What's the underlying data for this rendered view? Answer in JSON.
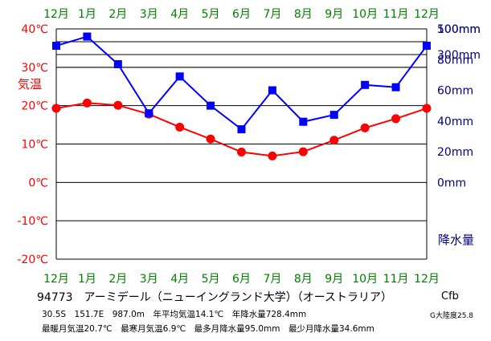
{
  "chart_data": {
    "type": "line",
    "categories": [
      "12月",
      "1月",
      "2月",
      "3月",
      "4月",
      "5月",
      "6月",
      "7月",
      "8月",
      "9月",
      "10月",
      "11月",
      "12月"
    ],
    "temp_axis": {
      "label": "気温",
      "ticks": [
        "40℃",
        "30℃",
        "20℃",
        "10℃",
        "0℃",
        "-10℃",
        "-20℃"
      ],
      "tick_values": [
        40,
        30,
        20,
        10,
        0,
        -10,
        -20
      ],
      "ylim": [
        -20,
        40
      ]
    },
    "precip_axis": {
      "label": "降水量",
      "ticks": [
        "500mm",
        "300mm",
        "100mm",
        "80mm",
        "60mm",
        "40mm",
        "20mm",
        "0mm"
      ],
      "linear_values": [
        100,
        80,
        60,
        40,
        20,
        0
      ],
      "ylim": [
        0,
        100
      ]
    },
    "series": [
      {
        "name": "",
        "color": "#ff0000",
        "values": [
          19.3,
          20.7,
          20.1,
          17.8,
          14.4,
          11.3,
          7.9,
          6.9,
          8.0,
          11.0,
          14.2,
          16.6,
          19.3
        ]
      },
      {
        "name": "",
        "color": "#0000ff",
        "values": [
          89.0,
          95.0,
          77.0,
          45.0,
          69.0,
          50.0,
          34.6,
          60.0,
          39.5,
          44.0,
          63.5,
          62.0,
          89.0
        ]
      }
    ],
    "colors": {
      "month_labels": "#008000",
      "temp_axis_text": "#ff0000",
      "precip_axis_text": "#000080",
      "grid": "#000000"
    },
    "grid": true
  },
  "info": {
    "station": "94773　アーミデール（ニューイングランド大学）（オーストラリア）",
    "line1": "30.5S　151.7E　987.0m　年平均気温14.1℃　年降水量728.4mm",
    "line2": "最暖月気温20.7℃　最寒月気温6.9℃　最多月降水量95.0mm　最少月降水量34.6mm",
    "climate_class": "Cfb",
    "continent": "G大陸度25.8"
  }
}
